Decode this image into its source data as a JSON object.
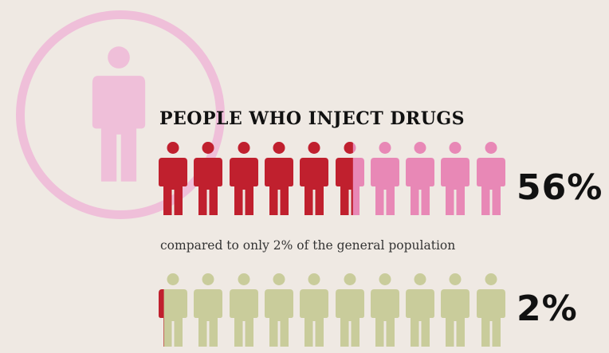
{
  "headline": "PEOPLE WHO INJECT DRUGS",
  "groups": [
    {
      "label": "people-who-inject-drugs",
      "percent_text": "56%",
      "fraction": 0.56,
      "fill_color": "#c0202e",
      "empty_color": "#e888b6",
      "icon_count": 10
    },
    {
      "label": "general-population",
      "percent_text": "2%",
      "fraction": 0.02,
      "fill_color": "#c0202e",
      "empty_color": "#c9cc9b",
      "icon_count": 10
    }
  ],
  "comparison_text": "compared to only 2% of the general population",
  "colors": {
    "background": "#efe9e3",
    "decor_circle": "#efbfd9",
    "decor_person": "#efbfd9",
    "headline": "#111111"
  },
  "icons": {
    "decor": "person-icon",
    "unit": "person-icon"
  }
}
